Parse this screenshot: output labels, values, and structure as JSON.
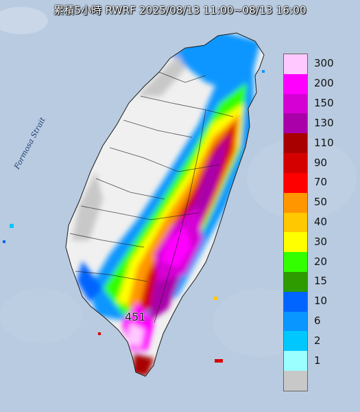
{
  "title": "累積5小時 RWRF 2025/08/13 11:00~08/13 16:00",
  "strait_label": "Formosa Strait",
  "max_value_label": "451",
  "legend": {
    "items": [
      {
        "value": "300",
        "color": "#ffc9ff"
      },
      {
        "value": "200",
        "color": "#ff00ff"
      },
      {
        "value": "150",
        "color": "#d400d4"
      },
      {
        "value": "130",
        "color": "#aa00aa"
      },
      {
        "value": "110",
        "color": "#a80000"
      },
      {
        "value": "90",
        "color": "#d40000"
      },
      {
        "value": "70",
        "color": "#ff0000"
      },
      {
        "value": "50",
        "color": "#ff9600"
      },
      {
        "value": "40",
        "color": "#ffc800"
      },
      {
        "value": "30",
        "color": "#ffff00"
      },
      {
        "value": "20",
        "color": "#33ff00"
      },
      {
        "value": "15",
        "color": "#2e9b00"
      },
      {
        "value": "10",
        "color": "#0064ff"
      },
      {
        "value": "6",
        "color": "#0a96ff"
      },
      {
        "value": "2",
        "color": "#00c8ff"
      },
      {
        "value": "1",
        "color": "#9bffff"
      },
      {
        "value": "",
        "color": "#c8c8c8"
      }
    ]
  },
  "colors": {
    "sea": "#b9cbe0",
    "land_no_rain": "#f0f0f0"
  }
}
